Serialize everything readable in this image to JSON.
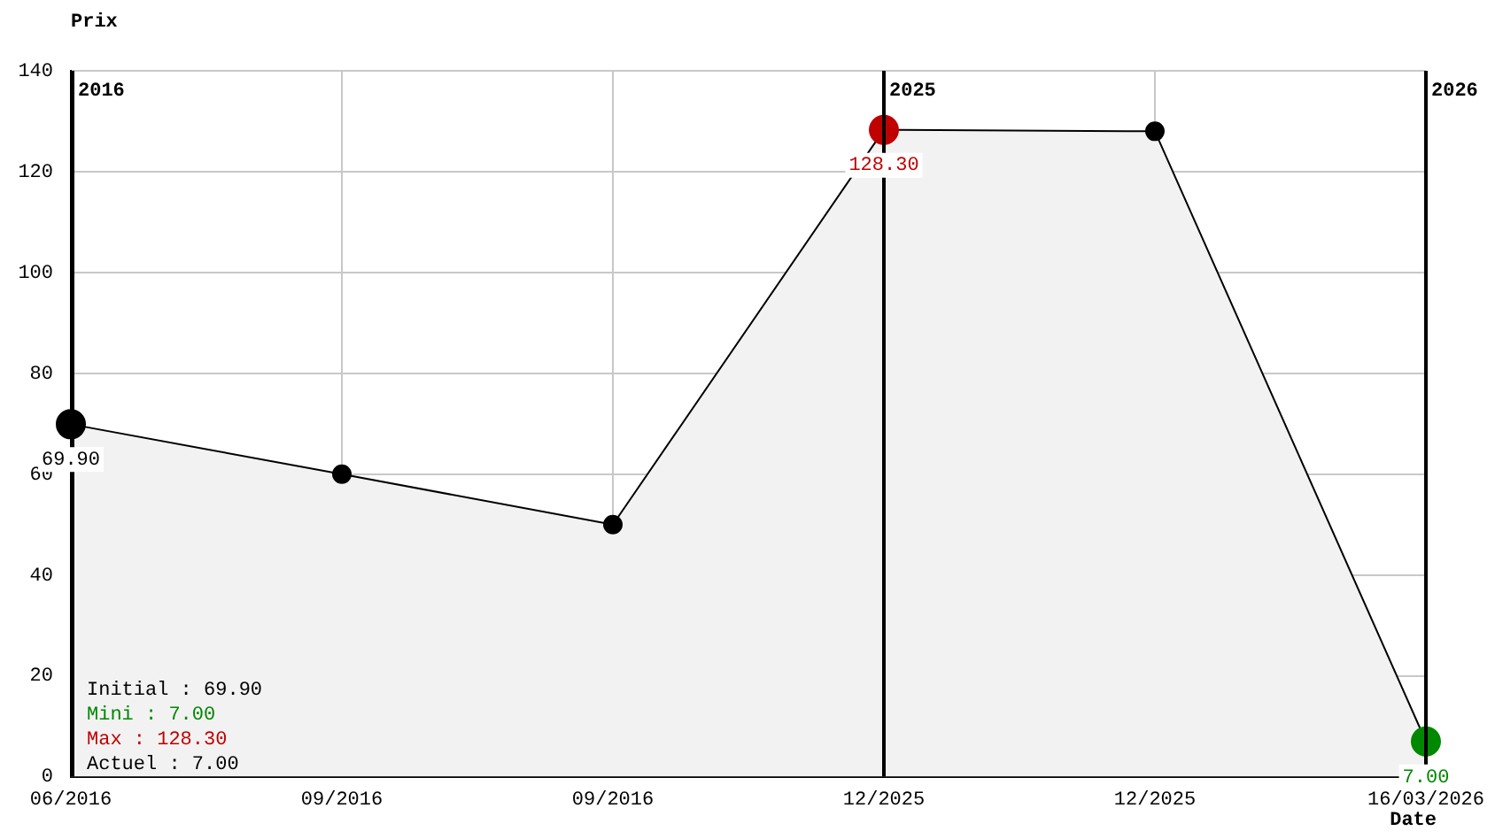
{
  "chart_data": {
    "type": "area",
    "ylabel": "Prix",
    "xlabel": "Date",
    "categories": [
      "06/2016",
      "09/2016",
      "09/2016",
      "12/2025",
      "12/2025",
      "16/03/2026"
    ],
    "series": [
      {
        "color": "#000000",
        "colors": [
          "#000000",
          "#000000",
          "#000000",
          "#c00000",
          "#000000",
          "#008800"
        ],
        "values": [
          69.9,
          60,
          50,
          128.3,
          128,
          7
        ],
        "value_labels": [
          "69.90",
          null,
          null,
          "128.30",
          null,
          "7.00"
        ]
      }
    ],
    "ylim": [
      0,
      140
    ],
    "yticks": [
      0,
      20,
      40,
      60,
      80,
      100,
      120,
      140
    ],
    "grid": true,
    "legend": false,
    "marker": "circle",
    "ref_lines": [
      {
        "axis": "x",
        "value": "06/2016",
        "label": "2016",
        "color": "#000000"
      },
      {
        "axis": "x",
        "value": "12/2025",
        "label": "2025",
        "color": "#000000"
      },
      {
        "axis": "x",
        "value": "16/03/2026",
        "label": "2026",
        "color": "#000000"
      }
    ],
    "annotations": [
      "Initial : 69.90",
      "Mini : 7.00",
      "Max : 128.30",
      "Actuel : 7.00"
    ]
  }
}
